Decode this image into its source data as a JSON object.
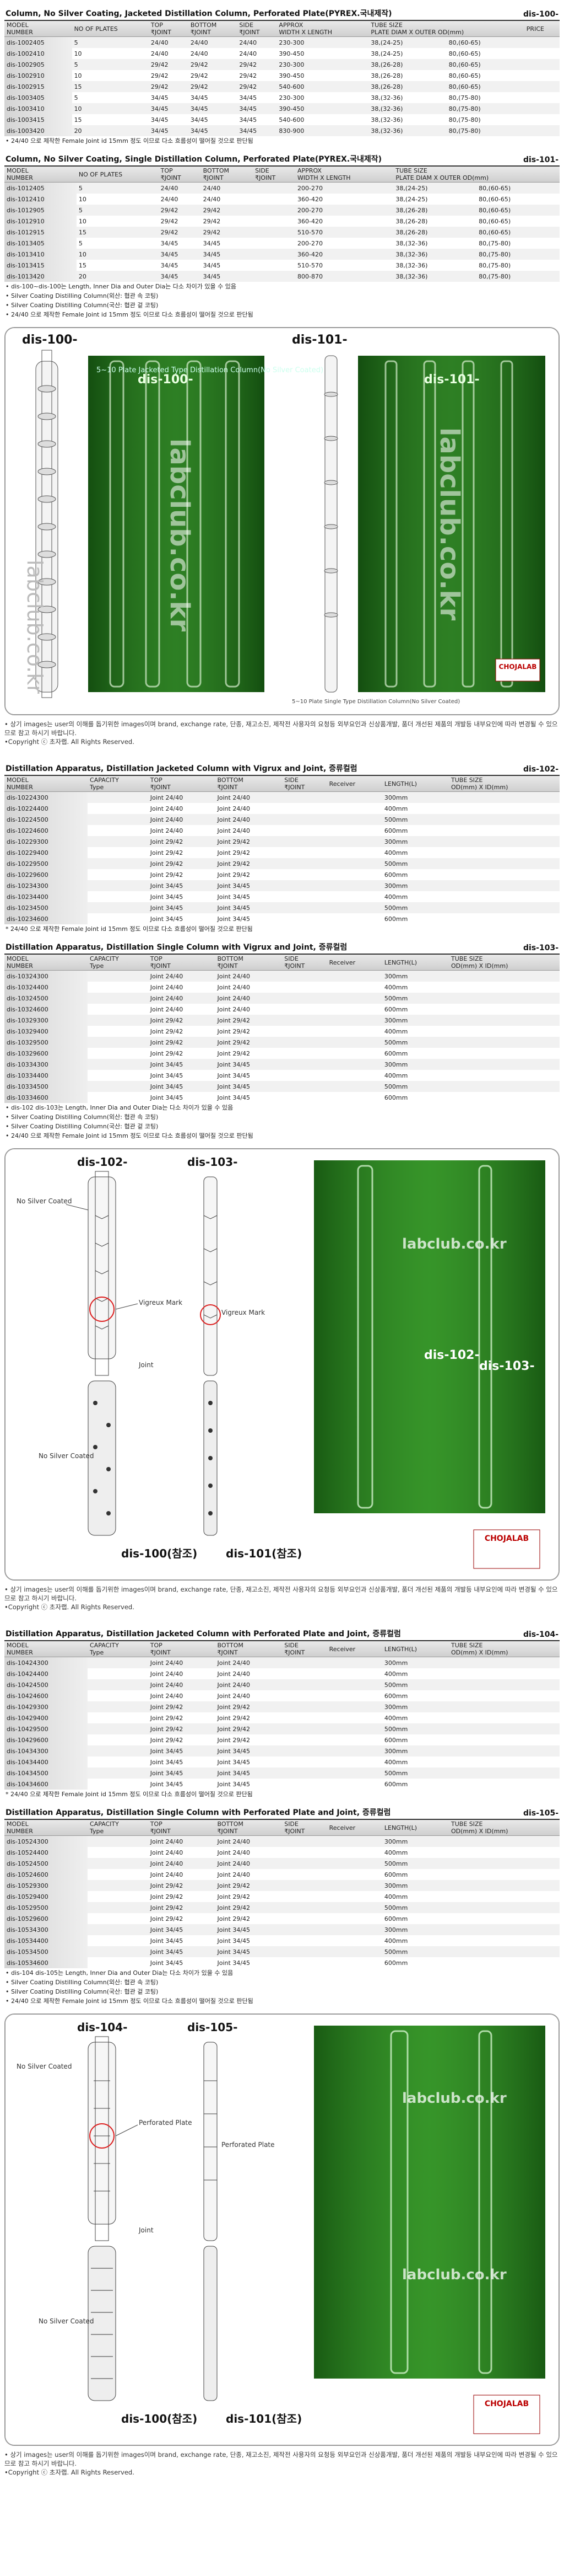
{
  "sections": [
    {
      "title": "Column, No Silver Coating, Jacketed Distillation Column, Perforated Plate(PYREX.국내제작)",
      "code": "dis-100-",
      "price": "PRICE",
      "headers": [
        "MODEL\nNUMBER",
        "NO OF PLATES",
        "TOP\n₹JOINT",
        "BOTTOM\n₹JOINT",
        "SIDE\n₹JOINT",
        "APPROX\nWIDTH X LENGTH",
        "TUBE SIZE\nPLATE DIAM X OUTER OD(mm)"
      ],
      "rows": [
        [
          "dis-1002405",
          "5",
          "24/40",
          "24/40",
          "24/40",
          "230-300",
          "38,(24-25)",
          "80,(60-65)"
        ],
        [
          "dis-1002410",
          "10",
          "24/40",
          "24/40",
          "24/40",
          "390-450",
          "38,(24-25)",
          "80,(60-65)"
        ],
        [
          "dis-1002905",
          "5",
          "29/42",
          "29/42",
          "29/42",
          "230-300",
          "38,(26-28)",
          "80,(60-65)"
        ],
        [
          "dis-1002910",
          "10",
          "29/42",
          "29/42",
          "29/42",
          "390-450",
          "38,(26-28)",
          "80,(60-65)"
        ],
        [
          "dis-1002915",
          "15",
          "29/42",
          "29/42",
          "29/42",
          "540-600",
          "38,(26-28)",
          "80,(60-65)"
        ],
        [
          "dis-1003405",
          "5",
          "34/45",
          "34/45",
          "34/45",
          "230-300",
          "38,(32-36)",
          "80,(75-80)"
        ],
        [
          "dis-1003410",
          "10",
          "34/45",
          "34/45",
          "34/45",
          "390-450",
          "38,(32-36)",
          "80,(75-80)"
        ],
        [
          "dis-1003415",
          "15",
          "34/45",
          "34/45",
          "34/45",
          "540-600",
          "38,(32-36)",
          "80,(75-80)"
        ],
        [
          "dis-1003420",
          "20",
          "34/45",
          "34/45",
          "34/45",
          "830-900",
          "38,(32-36)",
          "80,(75-80)"
        ]
      ],
      "notes": [
        "• 24/40 으로 제작한 Female Joint id 15mm 정도 이므로 다소 흐름성이 떨어질 것으로 판단됨"
      ]
    },
    {
      "title": "Column, No Silver Coating, Single Distillation Column, Perforated Plate(PYREX.국내제작)",
      "code": "dis-101-",
      "headers": [
        "MODEL\nNUMBER",
        "NO OF PLATES",
        "TOP\n₹JOINT",
        "BOTTOM\n₹JOINT",
        "SIDE\n₹JOINT",
        "APPROX\nWIDTH X LENGTH",
        "TUBE SIZE\nPLATE DIAM X OUTER OD(mm)"
      ],
      "rows": [
        [
          "dis-1012405",
          "5",
          "24/40",
          "24/40",
          null,
          "200-270",
          "38,(24-25)",
          "80,(60-65)"
        ],
        [
          "dis-1012410",
          "10",
          "24/40",
          "24/40",
          null,
          "360-420",
          "38,(24-25)",
          "80,(60-65)"
        ],
        [
          "dis-1012905",
          "5",
          "29/42",
          "29/42",
          null,
          "200-270",
          "38,(26-28)",
          "80,(60-65)"
        ],
        [
          "dis-1012910",
          "10",
          "29/42",
          "29/42",
          null,
          "360-420",
          "38,(26-28)",
          "80,(60-65)"
        ],
        [
          "dis-1012915",
          "15",
          "29/42",
          "29/42",
          null,
          "510-570",
          "38,(26-28)",
          "80,(60-65)"
        ],
        [
          "dis-1013405",
          "5",
          "34/45",
          "34/45",
          null,
          "200-270",
          "38,(32-36)",
          "80,(75-80)"
        ],
        [
          "dis-1013410",
          "10",
          "34/45",
          "34/45",
          null,
          "360-420",
          "38,(32-36)",
          "80,(75-80)"
        ],
        [
          "dis-1013415",
          "15",
          "34/45",
          "34/45",
          null,
          "510-570",
          "38,(32-36)",
          "80,(75-80)"
        ],
        [
          "dis-1013420",
          "20",
          "34/45",
          "34/45",
          null,
          "800-870",
          "38,(32-36)",
          "80,(75-80)"
        ]
      ],
      "notes": [
        "• dis-100~dis-100는 Length, Inner Dia and Outer Dia는 다소 차이가 있을 수 있음",
        "• Silver Coating Distilling Column(외산: 협관 속 코팅)",
        "• Silver Coating Distilling Column(국산: 협관 겉 코팅)",
        "• 24/40 으로 제작한 Female Joint id 15mm 정도 이므로 다소 흐름성이 떨어질 것으로 판단됨"
      ]
    },
    {
      "title": "Distillation Apparatus, Distillation Jacketed Column with Vigrux and Joint, 증류컬럼",
      "code": "dis-102-",
      "headers": [
        "MODEL\nNUMBER",
        "CAPACITY\nType",
        "TOP\n₹JOINT",
        "BOTTOM\n₹JOINT",
        "SIDE\n₹JOINT",
        "Receiver",
        "LENGTH(L)",
        "TUBE SIZE\nOD(mm) X ID(mm)"
      ],
      "rows": [
        [
          "dis-10224300",
          null,
          "Joint 24/40",
          "Joint 24/40",
          null,
          null,
          "300mm",
          null
        ],
        [
          "dis-10224400",
          null,
          "Joint 24/40",
          "Joint 24/40",
          null,
          null,
          "400mm",
          null
        ],
        [
          "dis-10224500",
          null,
          "Joint 24/40",
          "Joint 24/40",
          null,
          null,
          "500mm",
          null
        ],
        [
          "dis-10224600",
          null,
          "Joint 24/40",
          "Joint 24/40",
          null,
          null,
          "600mm",
          null
        ],
        [
          "dis-10229300",
          null,
          "Joint 29/42",
          "Joint 29/42",
          null,
          null,
          "300mm",
          null
        ],
        [
          "dis-10229400",
          null,
          "Joint 29/42",
          "Joint 29/42",
          null,
          null,
          "400mm",
          null
        ],
        [
          "dis-10229500",
          null,
          "Joint 29/42",
          "Joint 29/42",
          null,
          null,
          "500mm",
          null
        ],
        [
          "dis-10229600",
          null,
          "Joint 29/42",
          "Joint 29/42",
          null,
          null,
          "600mm",
          null
        ],
        [
          "dis-10234300",
          null,
          "Joint 34/45",
          "Joint 34/45",
          null,
          null,
          "300mm",
          null
        ],
        [
          "dis-10234400",
          null,
          "Joint 34/45",
          "Joint 34/45",
          null,
          null,
          "400mm",
          null
        ],
        [
          "dis-10234500",
          null,
          "Joint 34/45",
          "Joint 34/45",
          null,
          null,
          "500mm",
          null
        ],
        [
          "dis-10234600",
          null,
          "Joint 34/45",
          "Joint 34/45",
          null,
          null,
          "600mm",
          null
        ]
      ],
      "notes": [
        "* 24/40 으로 제작한 Female Joint id 15mm 정도 이므로 다소 흐름성이 떨어질 것으로 판단됨"
      ]
    },
    {
      "title": "Distillation Apparatus, Distillation Single Column with Vigrux and Joint, 증류컬럼",
      "code": "dis-103-",
      "headers": [
        "MODEL\nNUMBER",
        "CAPACITY\nType",
        "TOP\n₹JOINT",
        "BOTTOM\n₹JOINT",
        "SIDE\n₹JOINT",
        "Receiver",
        "LENGTH(L)",
        "TUBE SIZE\nOD(mm) X ID(mm)"
      ],
      "rows": [
        [
          "dis-10324300",
          null,
          "Joint 24/40",
          "Joint 24/40",
          null,
          null,
          "300mm",
          null
        ],
        [
          "dis-10324400",
          null,
          "Joint 24/40",
          "Joint 24/40",
          null,
          null,
          "400mm",
          null
        ],
        [
          "dis-10324500",
          null,
          "Joint 24/40",
          "Joint 24/40",
          null,
          null,
          "500mm",
          null
        ],
        [
          "dis-10324600",
          null,
          "Joint 24/40",
          "Joint 24/40",
          null,
          null,
          "600mm",
          null
        ],
        [
          "dis-10329300",
          null,
          "Joint 29/42",
          "Joint 29/42",
          null,
          null,
          "300mm",
          null
        ],
        [
          "dis-10329400",
          null,
          "Joint 29/42",
          "Joint 29/42",
          null,
          null,
          "400mm",
          null
        ],
        [
          "dis-10329500",
          null,
          "Joint 29/42",
          "Joint 29/42",
          null,
          null,
          "500mm",
          null
        ],
        [
          "dis-10329600",
          null,
          "Joint 29/42",
          "Joint 29/42",
          null,
          null,
          "600mm",
          null
        ],
        [
          "dis-10334300",
          null,
          "Joint 34/45",
          "Joint 34/45",
          null,
          null,
          "300mm",
          null
        ],
        [
          "dis-10334400",
          null,
          "Joint 34/45",
          "Joint 34/45",
          null,
          null,
          "400mm",
          null
        ],
        [
          "dis-10334500",
          null,
          "Joint 34/45",
          "Joint 34/45",
          null,
          null,
          "500mm",
          null
        ],
        [
          "dis-10334600",
          null,
          "Joint 34/45",
          "Joint 34/45",
          null,
          null,
          "600mm",
          null
        ]
      ],
      "notes": [
        "• dis-102 dis-103는 Length, Inner Dia and Outer Dia는 다소 차이가 있을 수 있음",
        "• Silver Coating Distilling Column(외산: 협관 속 코팅)",
        "• Silver Coating Distilling Column(국산: 협관 겉 코팅)",
        "• 24/40 으로 제작한 Female Joint id 15mm 정도 이므로 다소 흐름성이 떨어질 것으로 판단됨"
      ]
    },
    {
      "title": "Distillation Apparatus, Distillation Jacketed Column with Perforated Plate and Joint, 증류컬럼",
      "code": "dis-104-",
      "headers": [
        "MODEL\nNUMBER",
        "CAPACITY\nType",
        "TOP\n₹JOINT",
        "BOTTOM\n₹JOINT",
        "SIDE\n₹JOINT",
        "Receiver",
        "LENGTH(L)",
        "TUBE SIZE\nOD(mm) X ID(mm)"
      ],
      "rows": [
        [
          "dis-10424300",
          null,
          "Joint 24/40",
          "Joint 24/40",
          null,
          null,
          "300mm",
          null
        ],
        [
          "dis-10424400",
          null,
          "Joint 24/40",
          "Joint 24/40",
          null,
          null,
          "400mm",
          null
        ],
        [
          "dis-10424500",
          null,
          "Joint 24/40",
          "Joint 24/40",
          null,
          null,
          "500mm",
          null
        ],
        [
          "dis-10424600",
          null,
          "Joint 24/40",
          "Joint 24/40",
          null,
          null,
          "600mm",
          null
        ],
        [
          "dis-10429300",
          null,
          "Joint 29/42",
          "Joint 29/42",
          null,
          null,
          "300mm",
          null
        ],
        [
          "dis-10429400",
          null,
          "Joint 29/42",
          "Joint 29/42",
          null,
          null,
          "400mm",
          null
        ],
        [
          "dis-10429500",
          null,
          "Joint 29/42",
          "Joint 29/42",
          null,
          null,
          "500mm",
          null
        ],
        [
          "dis-10429600",
          null,
          "Joint 29/42",
          "Joint 29/42",
          null,
          null,
          "600mm",
          null
        ],
        [
          "dis-10434300",
          null,
          "Joint 34/45",
          "Joint 34/45",
          null,
          null,
          "300mm",
          null
        ],
        [
          "dis-10434400",
          null,
          "Joint 34/45",
          "Joint 34/45",
          null,
          null,
          "400mm",
          null
        ],
        [
          "dis-10434500",
          null,
          "Joint 34/45",
          "Joint 34/45",
          null,
          null,
          "500mm",
          null
        ],
        [
          "dis-10434600",
          null,
          "Joint 34/45",
          "Joint 34/45",
          null,
          null,
          "600mm",
          null
        ]
      ],
      "notes": [
        "* 24/40 으로 제작한 Female Joint id 15mm 정도 이므로 다소 흐름성이 떨어질 것으로 판단됨"
      ]
    },
    {
      "title": "Distillation Apparatus, Distillation Single Column with Perforated Plate and Joint, 증류컬럼",
      "code": "dis-105-",
      "headers": [
        "MODEL\nNUMBER",
        "CAPACITY\nType",
        "TOP\n₹JOINT",
        "BOTTOM\n₹JOINT",
        "SIDE\n₹JOINT",
        "Receiver",
        "LENGTH(L)",
        "TUBE SIZE\nOD(mm) X ID(mm)"
      ],
      "rows": [
        [
          "dis-10524300",
          null,
          "Joint 24/40",
          "Joint 24/40",
          null,
          null,
          "300mm",
          null
        ],
        [
          "dis-10524400",
          null,
          "Joint 24/40",
          "Joint 24/40",
          null,
          null,
          "400mm",
          null
        ],
        [
          "dis-10524500",
          null,
          "Joint 24/40",
          "Joint 24/40",
          null,
          null,
          "500mm",
          null
        ],
        [
          "dis-10524600",
          null,
          "Joint 24/40",
          "Joint 24/40",
          null,
          null,
          "600mm",
          null
        ],
        [
          "dis-10529300",
          null,
          "Joint 29/42",
          "Joint 29/42",
          null,
          null,
          "300mm",
          null
        ],
        [
          "dis-10529400",
          null,
          "Joint 29/42",
          "Joint 29/42",
          null,
          null,
          "400mm",
          null
        ],
        [
          "dis-10529500",
          null,
          "Joint 29/42",
          "Joint 29/42",
          null,
          null,
          "500mm",
          null
        ],
        [
          "dis-10529600",
          null,
          "Joint 29/42",
          "Joint 29/42",
          null,
          null,
          "600mm",
          null
        ],
        [
          "dis-10534300",
          null,
          "Joint 34/45",
          "Joint 34/45",
          null,
          null,
          "300mm",
          null
        ],
        [
          "dis-10534400",
          null,
          "Joint 34/45",
          "Joint 34/45",
          null,
          null,
          "400mm",
          null
        ],
        [
          "dis-10534500",
          null,
          "Joint 34/45",
          "Joint 34/45",
          null,
          null,
          "500mm",
          null
        ],
        [
          "dis-10534600",
          null,
          "Joint 34/45",
          "Joint 34/45",
          null,
          null,
          "600mm",
          null
        ]
      ],
      "notes": [
        "• dis-104 dis-105는 Length, Inner Dia and Outer Dia는 다소 차이가 있을 수 있음",
        "• Silver Coating Distilling Column(외산: 협관 속 코팅)",
        "• Silver Coating Distilling Column(국산: 협관 겉 코팅)",
        "• 24/40 으로 제작한 Female Joint id 15mm 정도 이므로 다소 흐름성이 떨어질 것으로 판단됨"
      ]
    }
  ],
  "figures": [
    {
      "left": "dis-100-",
      "right": "dis-101-",
      "watermark": "labclub.co.kr",
      "caption": "5~10 Plate Jacketed Type Distillation Column(No Silver Coated)",
      "caption2": "5~10 Plate Single Type Distillation Column(No Silver Coated)",
      "brand": "CHOJALAB"
    },
    {
      "left": "dis-102-",
      "right": "dis-103-",
      "watermark": "labclub.co.kr",
      "callout1": "No Silver Coated",
      "callout2": "Vigreux Mark",
      "callout3": "Joint",
      "ref_left": "dis-100(참조)",
      "ref_right": "dis-101(참조)",
      "brand": "CHOJALAB"
    },
    {
      "left": "dis-104-",
      "right": "dis-105-",
      "watermark": "labclub.co.kr",
      "callout1": "No Silver Coated",
      "callout2": "Perforated Plate",
      "callout3": "Joint",
      "ref_left": "dis-100(참조)",
      "ref_right": "dis-101(참조)",
      "brand": "CHOJALAB"
    }
  ],
  "disclaimer": "• 상기 images는 user의 이해를 돕기위한 images이며 brand, exchange rate, 단종, 재고소진, 제작전 사용자의 요청등 외부요인과 신상품개발, 품더 개선된 제품의 개발등 내부요인에 따라 변경될 수 있으므로 참고 하시기 바랍니다.",
  "copyright": "•Copyright ⓒ 초자랩.  All Rights Reserved."
}
